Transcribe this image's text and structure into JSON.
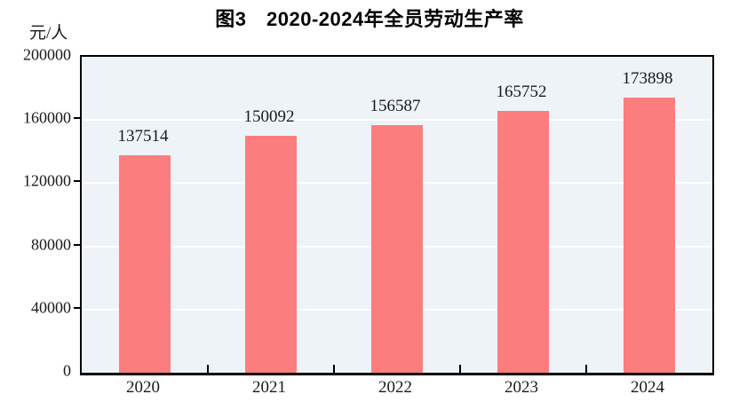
{
  "title": "图3　2020-2024年全员劳动生产率",
  "unit_label": "元/人",
  "colors": {
    "bar": "#FC7D7D",
    "plot_background": "#EDF3F7",
    "gridline": "#FFFFFF",
    "axis": "#000000",
    "text": "#1A1A1A"
  },
  "chart_data": {
    "type": "bar",
    "title": "图3　2020-2024年全员劳动生产率",
    "ylabel": "元/人",
    "xlabel": "",
    "categories": [
      "2020",
      "2021",
      "2022",
      "2023",
      "2024"
    ],
    "values": [
      137514,
      150092,
      156587,
      165752,
      173898
    ],
    "data_labels": [
      "137514",
      "150092",
      "156587",
      "165752",
      "173898"
    ],
    "ylim": [
      0,
      200000
    ],
    "yticks": [
      0,
      40000,
      80000,
      120000,
      160000,
      200000
    ],
    "ytick_labels": [
      "0",
      "40000",
      "80000",
      "120000",
      "160000",
      "200000"
    ],
    "grid": "horizontal",
    "legend_position": "none"
  }
}
